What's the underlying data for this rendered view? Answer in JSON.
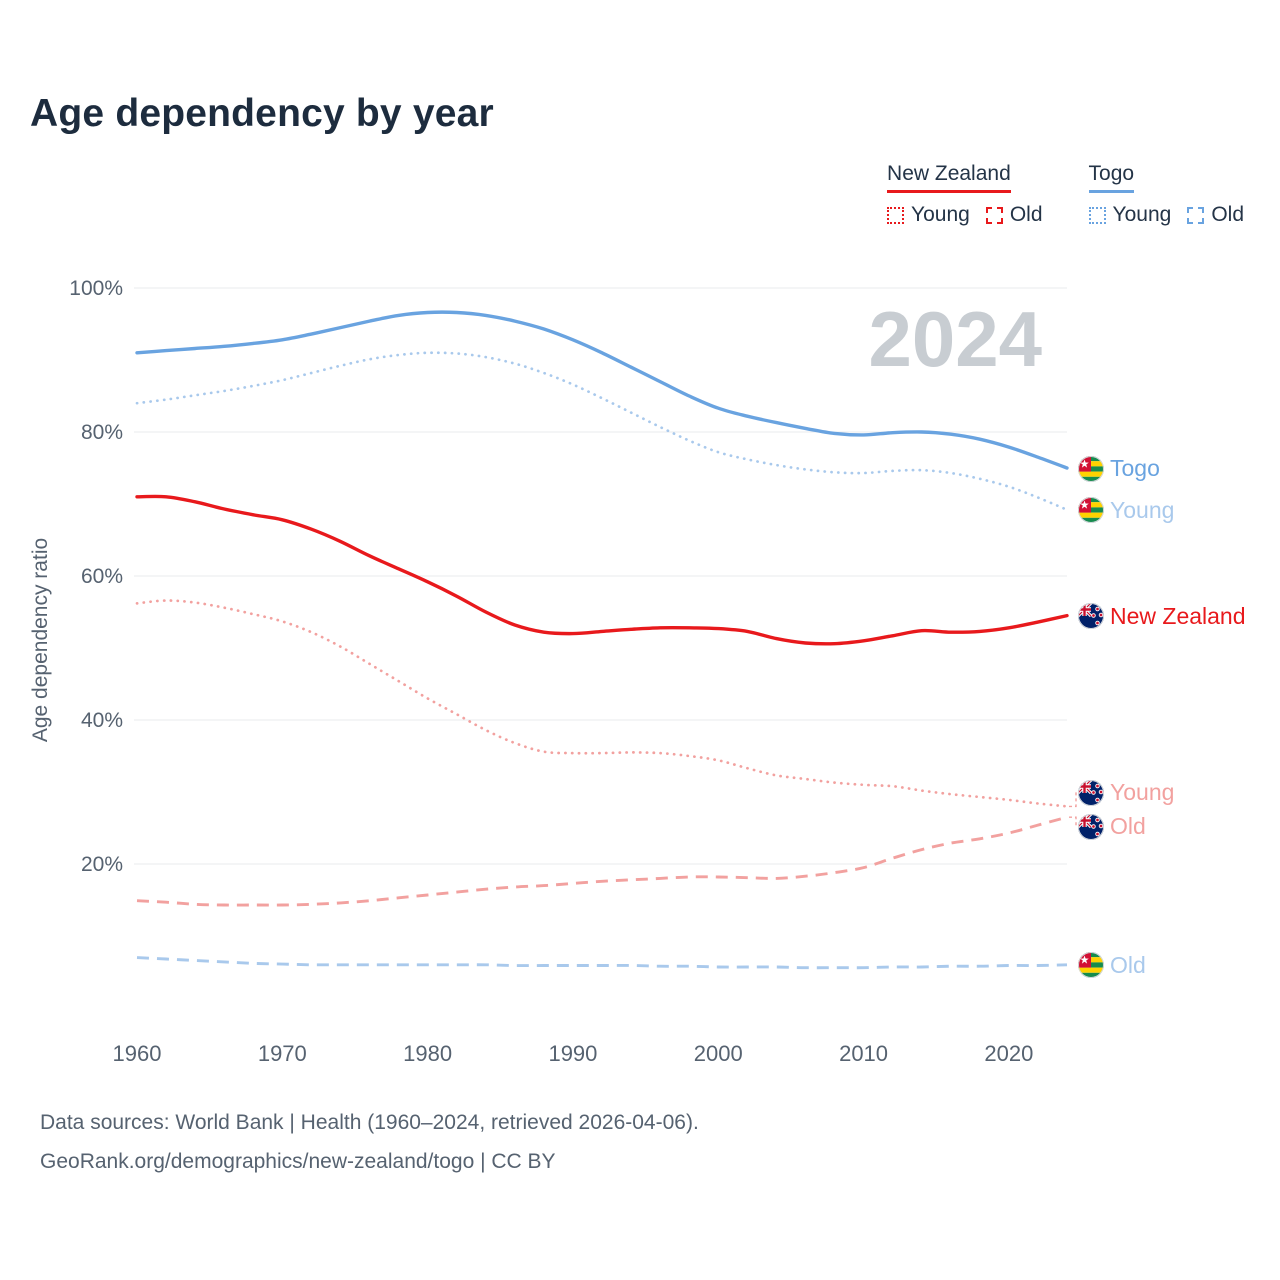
{
  "title": "Age dependency by year",
  "watermark": "2024",
  "legend": {
    "groups": [
      {
        "name": "New Zealand",
        "color": "#e8191c",
        "items": [
          {
            "label": "Young",
            "style": "dotted"
          },
          {
            "label": "Old",
            "style": "dashed"
          }
        ]
      },
      {
        "name": "Togo",
        "color": "#69a3e0",
        "items": [
          {
            "label": "Young",
            "style": "dotted"
          },
          {
            "label": "Old",
            "style": "dashed"
          }
        ]
      }
    ]
  },
  "colors": {
    "nz_red": "#e8191c",
    "nz_pink": "#f2a19f",
    "togo_blue": "#69a3e0",
    "togo_light_blue": "#a9c9ec",
    "watermark_gray": "#c8cdd2",
    "grid": "#e9ebee",
    "axis_text": "#566270"
  },
  "chart_data": {
    "type": "line",
    "title": "Age dependency by year",
    "xlabel": "",
    "ylabel": "Age dependency ratio",
    "ylim": [
      0,
      100
    ],
    "grid": true,
    "x": [
      1960,
      1962,
      1964,
      1966,
      1968,
      1970,
      1972,
      1974,
      1976,
      1978,
      1980,
      1982,
      1984,
      1986,
      1988,
      1990,
      1992,
      1994,
      1996,
      1998,
      2000,
      2002,
      2004,
      2006,
      2008,
      2010,
      2012,
      2014,
      2016,
      2018,
      2020,
      2022,
      2024
    ],
    "xticks": [
      1960,
      1970,
      1980,
      1990,
      2000,
      2010,
      2020
    ],
    "yticks": [
      100,
      80,
      60,
      40,
      20
    ],
    "ytick_suffix": "%",
    "series": [
      {
        "name": "Togo",
        "country": "Togo",
        "measure": "total",
        "style": "solid",
        "color": "#69a3e0",
        "values": [
          91.0,
          91.3,
          91.6,
          91.9,
          92.3,
          92.8,
          93.6,
          94.5,
          95.4,
          96.2,
          96.6,
          96.6,
          96.2,
          95.4,
          94.3,
          92.8,
          91.0,
          89.0,
          87.0,
          85.0,
          83.3,
          82.2,
          81.3,
          80.5,
          79.8,
          79.6,
          79.9,
          80.0,
          79.7,
          79.0,
          77.9,
          76.5,
          75.0
        ]
      },
      {
        "name": "Young (Togo)",
        "country": "Togo",
        "measure": "young",
        "style": "dotted",
        "color": "#a9c9ec",
        "values": [
          84.0,
          84.5,
          85.1,
          85.7,
          86.4,
          87.2,
          88.2,
          89.2,
          90.1,
          90.7,
          91.0,
          90.9,
          90.4,
          89.5,
          88.2,
          86.6,
          84.7,
          82.7,
          80.7,
          78.8,
          77.2,
          76.2,
          75.4,
          74.8,
          74.4,
          74.3,
          74.6,
          74.7,
          74.3,
          73.5,
          72.4,
          70.9,
          69.2
        ]
      },
      {
        "name": "Old (Togo)",
        "country": "Togo",
        "measure": "old",
        "style": "dashed",
        "color": "#a9c9ec",
        "values": [
          7.0,
          6.8,
          6.6,
          6.4,
          6.2,
          6.1,
          6.0,
          6.0,
          6.0,
          6.0,
          6.0,
          6.0,
          6.0,
          5.9,
          5.9,
          5.9,
          5.9,
          5.9,
          5.8,
          5.8,
          5.7,
          5.7,
          5.7,
          5.6,
          5.6,
          5.6,
          5.7,
          5.7,
          5.8,
          5.8,
          5.9,
          5.9,
          6.0
        ]
      },
      {
        "name": "New Zealand",
        "country": "New Zealand",
        "measure": "total",
        "style": "solid",
        "color": "#e8191c",
        "values": [
          71.0,
          71.0,
          70.3,
          69.3,
          68.5,
          67.8,
          66.5,
          64.8,
          62.8,
          61.0,
          59.2,
          57.2,
          55.0,
          53.2,
          52.2,
          52.0,
          52.3,
          52.6,
          52.8,
          52.8,
          52.7,
          52.3,
          51.3,
          50.7,
          50.6,
          51.0,
          51.7,
          52.4,
          52.2,
          52.3,
          52.8,
          53.6,
          54.5
        ]
      },
      {
        "name": "Young (New Zealand)",
        "country": "New Zealand",
        "measure": "young",
        "style": "dotted",
        "color": "#f2a19f",
        "values": [
          56.2,
          56.6,
          56.3,
          55.6,
          54.7,
          53.7,
          52.2,
          50.2,
          47.8,
          45.4,
          43.0,
          40.8,
          38.6,
          36.8,
          35.6,
          35.4,
          35.4,
          35.5,
          35.4,
          35.0,
          34.4,
          33.3,
          32.3,
          31.8,
          31.3,
          31.0,
          30.8,
          30.2,
          29.7,
          29.3,
          28.9,
          28.4,
          28.0
        ]
      },
      {
        "name": "Old (New Zealand)",
        "country": "New Zealand",
        "measure": "old",
        "style": "dashed",
        "color": "#f2a19f",
        "values": [
          14.9,
          14.7,
          14.4,
          14.3,
          14.3,
          14.3,
          14.4,
          14.6,
          14.9,
          15.3,
          15.7,
          16.1,
          16.5,
          16.8,
          17.0,
          17.3,
          17.6,
          17.8,
          18.0,
          18.2,
          18.2,
          18.1,
          18.0,
          18.3,
          18.8,
          19.5,
          20.8,
          22.0,
          22.9,
          23.5,
          24.3,
          25.4,
          26.5
        ]
      }
    ],
    "end_labels": [
      {
        "text": "Togo",
        "flag": "togo",
        "color": "#69a3e0",
        "series": 0
      },
      {
        "text": "Young",
        "flag": "togo",
        "color": "#a9c9ec",
        "series": 1
      },
      {
        "text": "New Zealand",
        "flag": "nz",
        "color": "#e8191c",
        "series": 3
      },
      {
        "text": "Young",
        "flag": "nz",
        "color": "#f2a19f",
        "series": 4
      },
      {
        "text": "Old",
        "flag": "nz",
        "color": "#f2a19f",
        "series": 5
      },
      {
        "text": "Old",
        "flag": "togo",
        "color": "#a9c9ec",
        "series": 2
      }
    ]
  },
  "footer": {
    "line1": "Data sources: World Bank | Health (1960–2024, retrieved 2026-04-06).",
    "line2": "GeoRank.org/demographics/new-zealand/togo | CC BY"
  }
}
